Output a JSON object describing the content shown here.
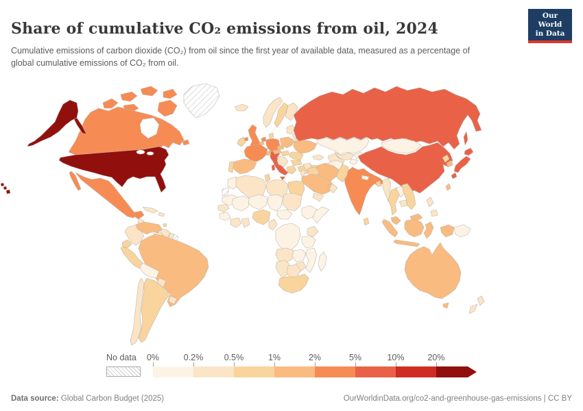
{
  "header": {
    "title": "Share of cumulative CO₂ emissions from oil, 2024",
    "subtitle": "Cumulative emissions of carbon dioxide (CO₂) from oil since the first year of available data, measured as a percentage of global cumulative emissions of CO₂ from oil.",
    "logo": {
      "line1": "Our World",
      "line2": "in Data",
      "bg": "#1D3D63",
      "accent": "#E0362C"
    }
  },
  "footer": {
    "source_label": "Data source:",
    "source_value": " Global Carbon Budget (2025)",
    "link": "OurWorldinData.org/co2-and-greenhouse-gas-emissions | CC BY"
  },
  "legend": {
    "no_data_label": "No data",
    "bins": [
      {
        "label": "0%",
        "color": "#FDF3E5"
      },
      {
        "label": "0.2%",
        "color": "#FBE5C6"
      },
      {
        "label": "0.5%",
        "color": "#F9D49D"
      },
      {
        "label": "1%",
        "color": "#F9BB80"
      },
      {
        "label": "2%",
        "color": "#F78B54"
      },
      {
        "label": "5%",
        "color": "#E96248"
      },
      {
        "label": "10%",
        "color": "#CD2D22"
      },
      {
        "label": "20%",
        "color": "#91100E"
      }
    ]
  },
  "chart_data": {
    "type": "choropleth-map",
    "title": "Share of cumulative CO₂ emissions from oil, 2024",
    "year": 2024,
    "unit": "% of global cumulative CO₂ emissions from oil",
    "legend_position": "bottom",
    "palette": {
      "b1": "#FDF3E5",
      "b2": "#FBE5C6",
      "b3": "#F9D49D",
      "b4": "#F9BB80",
      "b5": "#F78B54",
      "b6": "#E96248",
      "b7": "#CD2D22",
      "b8": "#91100E"
    },
    "bucket_labels": {
      "b1": "0%–0.2%",
      "b2": "0.2%–0.5%",
      "b3": "0.5%–1%",
      "b4": "1%–2%",
      "b5": "2%–5%",
      "b6": "5%–10%",
      "b7": "10%–20%",
      "b8": "20%+",
      "nd": "No data"
    },
    "countries": {
      "united-states": "b8",
      "canada": "b5",
      "mexico": "b5",
      "greenland": "nd",
      "guatemala": "b2",
      "honduras": "b1",
      "costa-rica": "b1",
      "panama": "b2",
      "cuba": "b2",
      "hispaniola": "b2",
      "trinidad": "b3",
      "venezuela": "b4",
      "colombia": "b2",
      "guyana": "b2",
      "suriname": "b2",
      "french-guiana": "nd",
      "ecuador": "b3",
      "peru": "b3",
      "brazil": "b4",
      "bolivia": "b1",
      "paraguay": "b2",
      "chile": "b2",
      "argentina": "b3",
      "uruguay": "b2",
      "iceland": "b2",
      "united-kingdom": "b5",
      "ireland": "b3",
      "norway": "b2",
      "sweden": "b3",
      "finland": "b2",
      "denmark": "b3",
      "germany": "b5",
      "netherlands": "b5",
      "belgium": "b4",
      "france": "b5",
      "spain": "b4",
      "portugal": "b3",
      "italy": "b6",
      "switzerland": "b4",
      "austria": "b4",
      "czechia": "b4",
      "poland": "b4",
      "baltics": "b2",
      "belarus": "b2",
      "ukraine": "b4",
      "romania": "b3",
      "hungary": "b3",
      "balkans": "b2",
      "bulgaria": "b3",
      "greece": "b3",
      "turkey": "b3",
      "russia": "b6",
      "kazakhstan": "b1",
      "uzbekistan": "b2",
      "turkmenistan": "b2",
      "kyrgyzstan": "b1",
      "tajikistan": "b1",
      "caucasus": "b2",
      "mongolia": "b1",
      "china": "b6",
      "taiwan": "b4",
      "north-korea": "b3",
      "south-korea": "b4",
      "japan": "b6",
      "india": "b5",
      "pakistan": "b3",
      "afghanistan": "b1",
      "nepal": "b1",
      "bangladesh": "b3",
      "sri-lanka": "b3",
      "myanmar": "b2",
      "thailand": "b3",
      "laos": "b1",
      "cambodia": "b2",
      "vietnam": "b3",
      "malaysia": "b4",
      "indonesia": "b4",
      "philippines": "b2",
      "papua-new-guinea": "b1",
      "australia": "b4",
      "new-zealand": "b2",
      "saudi-arabia": "b4",
      "yemen": "b2",
      "oman": "b2",
      "uae": "b4",
      "kuwait": "b4",
      "iraq": "b3",
      "syria": "b2",
      "jordan": "b2",
      "iran": "b4",
      "egypt": "b3",
      "morocco": "b1",
      "western-sahara": "nd",
      "algeria": "b2",
      "tunisia": "b3",
      "libya": "b2",
      "mauritania": "b1",
      "mali": "b1",
      "niger": "b1",
      "chad": "b1",
      "sudan": "b2",
      "ethiopia": "b1",
      "somalia": "b1",
      "senegal": "b2",
      "guinea": "b1",
      "cote-divoire": "b2",
      "ghana": "b2",
      "nigeria": "b3",
      "cameroon": "b2",
      "central-african-republic": "b1",
      "dr-congo": "b1",
      "kenya": "b2",
      "tanzania": "b1",
      "angola": "b2",
      "zambia": "b1",
      "mozambique": "b1",
      "zimbabwe": "b2",
      "namibia": "b2",
      "botswana": "b2",
      "south-africa": "b3",
      "madagascar": "b1"
    }
  }
}
